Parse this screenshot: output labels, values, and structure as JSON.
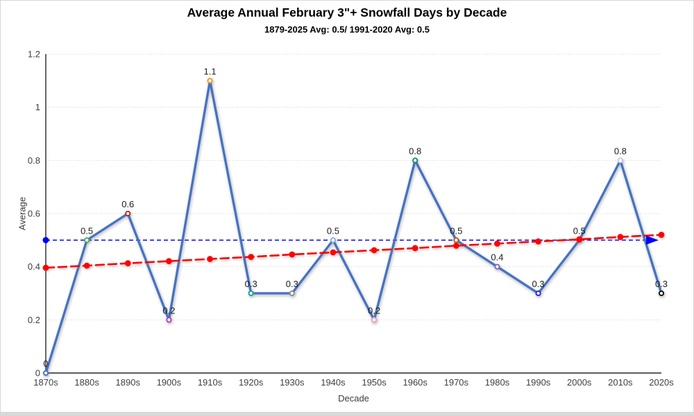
{
  "header": {
    "title": "Average Annual February 3\"+ Snowfall Days by Decade",
    "subtitle": "1879-2025 Avg: 0.5/ 1991-2020 Avg: 0.5"
  },
  "colors": {
    "series_line": "#4472c4",
    "trend_line": "#ff0000",
    "average_line": "#0000ff",
    "gridline": "#d9d9d9",
    "axis": "#262626",
    "tick_text": "#3f3f3f",
    "data_label_text": "#1a1a1a",
    "frame_edge": "#d9d9d9"
  },
  "chart_data": {
    "type": "line",
    "title": "Average Annual February 3\"+ Snowfall Days by Decade",
    "subtitle": "1879-2025 Avg: 0.5/ 1991-2020 Avg: 0.5",
    "xlabel": "Decade",
    "ylabel": "Average",
    "ylim": [
      0,
      1.2
    ],
    "grid": true,
    "legend": "none",
    "yticks": [
      0,
      0.2,
      0.4,
      0.6,
      0.8,
      1,
      1.2
    ],
    "ytick_labels": [
      "0",
      "0.2",
      "0.4",
      "0.6",
      "0.8",
      "1",
      "1.2"
    ],
    "categories": [
      "1870s",
      "1880s",
      "1890s",
      "1900s",
      "1910s",
      "1920s",
      "1930s",
      "1940s",
      "1950s",
      "1960s",
      "1970s",
      "1980s",
      "1990s",
      "2000s",
      "2010s",
      "2020s"
    ],
    "series": [
      {
        "name": "decade_average",
        "style": "solid",
        "color": "#4472c4",
        "values": [
          0,
          0.5,
          0.6,
          0.2,
          1.1,
          0.3,
          0.3,
          0.5,
          0.2,
          0.8,
          0.5,
          0.4,
          0.3,
          0.5,
          0.8,
          0.3
        ],
        "labels": [
          "0",
          "0.5",
          "0.6",
          "0.2",
          "1.1",
          "0.3",
          "0.3",
          "0.5",
          "0.2",
          "0.8",
          "0.5",
          "0.4",
          "0.3",
          "0.5",
          "0.8",
          "0.3"
        ],
        "marker_colors": [
          "#4472c4",
          "#4caf50",
          "#aa2d25",
          "#b441b4",
          "#f29a20",
          "#16a098",
          "#8e8e8e",
          "#92aede",
          "#f0a2b0",
          "#1d8a6e",
          "#c05c15",
          "#7a68c9",
          "#2424dd",
          "#ff2020",
          "#cacae8",
          "#111111"
        ]
      },
      {
        "name": "linear_trend",
        "style": "dashed",
        "color": "#ff0000",
        "values": [
          0.396,
          0.404,
          0.413,
          0.421,
          0.429,
          0.437,
          0.446,
          0.454,
          0.462,
          0.47,
          0.479,
          0.487,
          0.495,
          0.503,
          0.512,
          0.52
        ]
      },
      {
        "name": "overall_average_reference",
        "style": "dashed-arrow",
        "color": "#0000ff",
        "value": 0.5
      }
    ]
  }
}
